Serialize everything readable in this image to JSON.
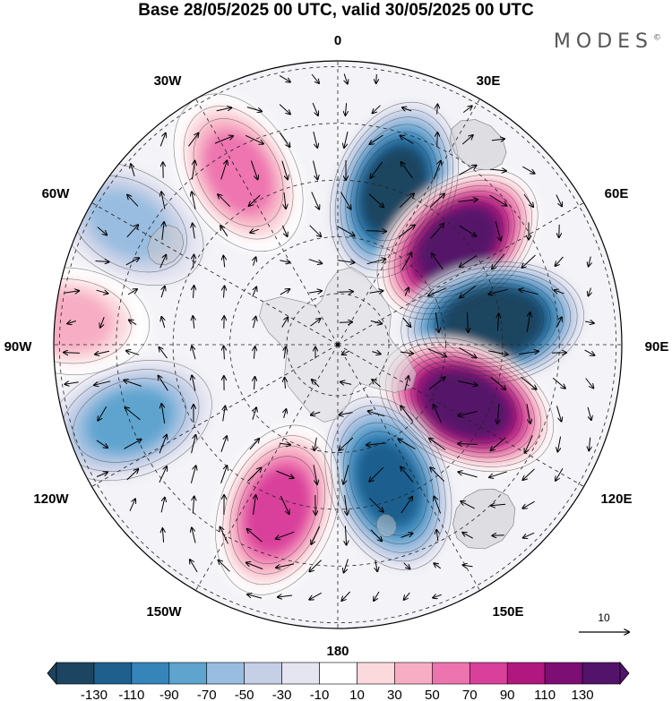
{
  "title": "Base 28/05/2025 00 UTC, valid 30/05/2025 00 UTC",
  "brand": "MODES",
  "brand_mark": "©",
  "lon_labels": {
    "lon_0": "0",
    "lon_30e": "30E",
    "lon_60e": "60E",
    "lon_90e": "90E",
    "lon_120e": "120E",
    "lon_150e": "150E",
    "lon_180": "180",
    "lon_150w": "150W",
    "lon_120w": "120W",
    "lon_90w": "90W",
    "lon_60w": "60W",
    "lon_30w": "30W"
  },
  "reference_vector_label": "10",
  "colorbar": {
    "ticks": [
      "-130",
      "-110",
      "-90",
      "-70",
      "-50",
      "-30",
      "-10",
      "10",
      "30",
      "50",
      "70",
      "90",
      "110",
      "130"
    ],
    "colors": [
      "#1d4460",
      "#1f5f8e",
      "#3585bb",
      "#5ea4cf",
      "#99bde0",
      "#c5cfe6",
      "#e5e5f1",
      "#ffffff",
      "#fbd9dd",
      "#f7aec4",
      "#ee74b0",
      "#d9409b",
      "#b0177f",
      "#7d0e74",
      "#54136a"
    ]
  },
  "anomaly_centers": [
    {
      "lon": 20,
      "colat": 0.58,
      "value": -110
    },
    {
      "lon": 50,
      "colat": 0.55,
      "value": 130
    },
    {
      "lon": 82,
      "colat": 0.55,
      "value": -130
    },
    {
      "lon": 115,
      "colat": 0.5,
      "value": 130
    },
    {
      "lon": 160,
      "colat": 0.52,
      "value": -90
    },
    {
      "lon": 200,
      "colat": 0.62,
      "value": 70
    },
    {
      "lon": 250,
      "colat": 0.78,
      "value": -50
    },
    {
      "lon": 330,
      "colat": 0.7,
      "value": 50
    },
    {
      "lon": 275,
      "colat": 0.95,
      "value": 30
    },
    {
      "lon": 300,
      "colat": 0.85,
      "value": -30
    }
  ]
}
